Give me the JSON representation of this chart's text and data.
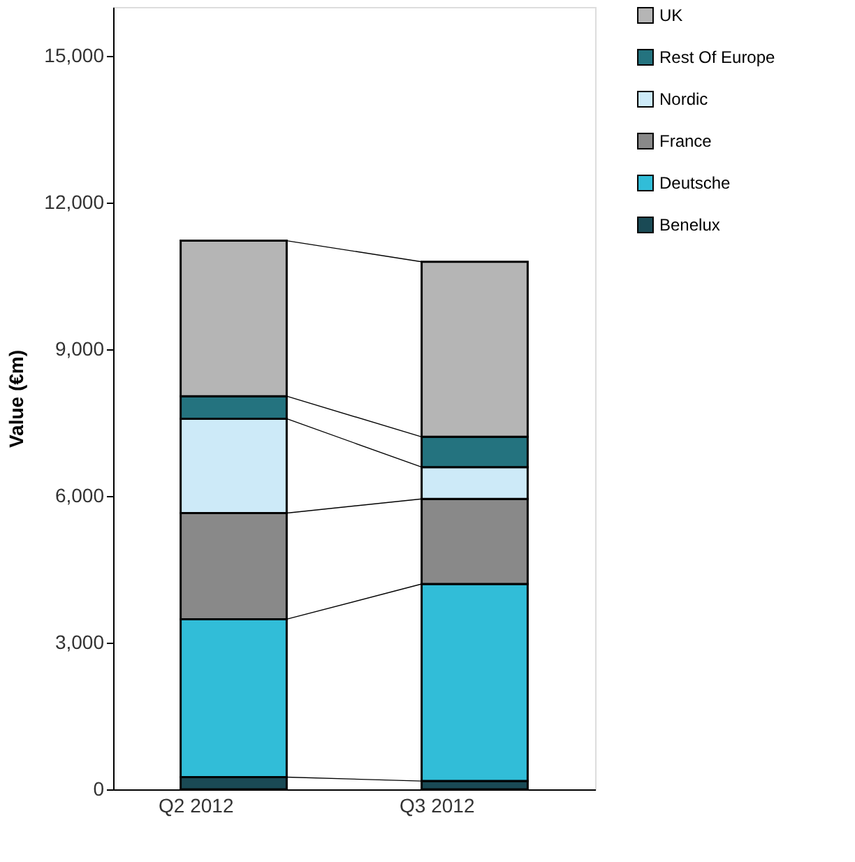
{
  "chart_data": {
    "type": "bar",
    "stacked": true,
    "ylabel": "Value (€m)",
    "categories": [
      "Q2 2012",
      "Q3 2012"
    ],
    "series": [
      {
        "name": "Benelux",
        "color": "#1a4a55",
        "values": [
          250,
          170
        ]
      },
      {
        "name": "Deutsche",
        "color": "#31bdd8",
        "values": [
          3230,
          4030
        ]
      },
      {
        "name": "France",
        "color": "#898989",
        "values": [
          2170,
          1740
        ]
      },
      {
        "name": "Nordic",
        "color": "#cdeaf8",
        "values": [
          1930,
          650
        ]
      },
      {
        "name": "Rest Of Europe",
        "color": "#24737f",
        "values": [
          460,
          620
        ]
      },
      {
        "name": "UK",
        "color": "#b5b5b5",
        "values": [
          3180,
          3580
        ]
      }
    ],
    "ylim": [
      0,
      16000
    ],
    "yticks": [
      0,
      {
        "value": 3000,
        "label": "3,000"
      },
      {
        "value": 6000,
        "label": "6,000"
      },
      {
        "value": 9000,
        "label": "9,000"
      },
      {
        "value": 12000,
        "label": "12,000"
      },
      {
        "value": 15000,
        "label": "15,000"
      }
    ],
    "grid": false,
    "legend": "right"
  }
}
